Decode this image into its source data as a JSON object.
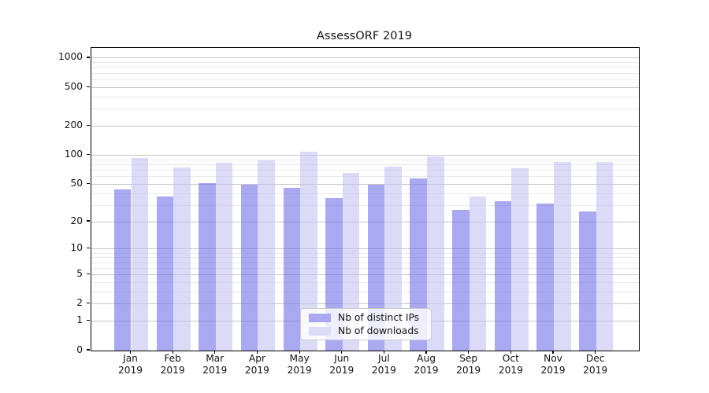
{
  "chart_data": {
    "type": "bar",
    "title": "AssessORF 2019",
    "categories": [
      "Jan",
      "Feb",
      "Mar",
      "Apr",
      "May",
      "Jun",
      "Jul",
      "Aug",
      "Sep",
      "Oct",
      "Nov",
      "Dec"
    ],
    "x_year_suffix": "2019",
    "series": [
      {
        "name": "Nb of distinct IPs",
        "values": [
          44,
          37,
          51,
          49,
          46,
          36,
          49,
          57,
          27,
          33,
          31,
          26
        ],
        "fill": "rgba(112,112,232,0.6)",
        "swatch": "#a9a9f1"
      },
      {
        "name": "Nb of downloads",
        "values": [
          93,
          75,
          84,
          89,
          108,
          65,
          76,
          97,
          37,
          74,
          85,
          85
        ],
        "fill": "rgba(195,195,243,0.6)",
        "swatch": "#dbdbf8"
      }
    ],
    "y_axis": {
      "scale": "log1p",
      "ticks": [
        0,
        1,
        2,
        5,
        10,
        20,
        50,
        100,
        200,
        500,
        1000
      ],
      "minor_ticks": [
        3,
        4,
        6,
        7,
        8,
        9,
        30,
        40,
        60,
        70,
        80,
        90,
        300,
        400,
        600,
        700,
        800,
        900
      ],
      "ylim": [
        0,
        1270
      ]
    },
    "grid": {
      "major_color": "#c6c6c6",
      "minor_color": "#eaeaea",
      "on": true
    },
    "legend": {
      "position": "lower center"
    },
    "spine_color": "#000000",
    "text_color": "#141414"
  }
}
